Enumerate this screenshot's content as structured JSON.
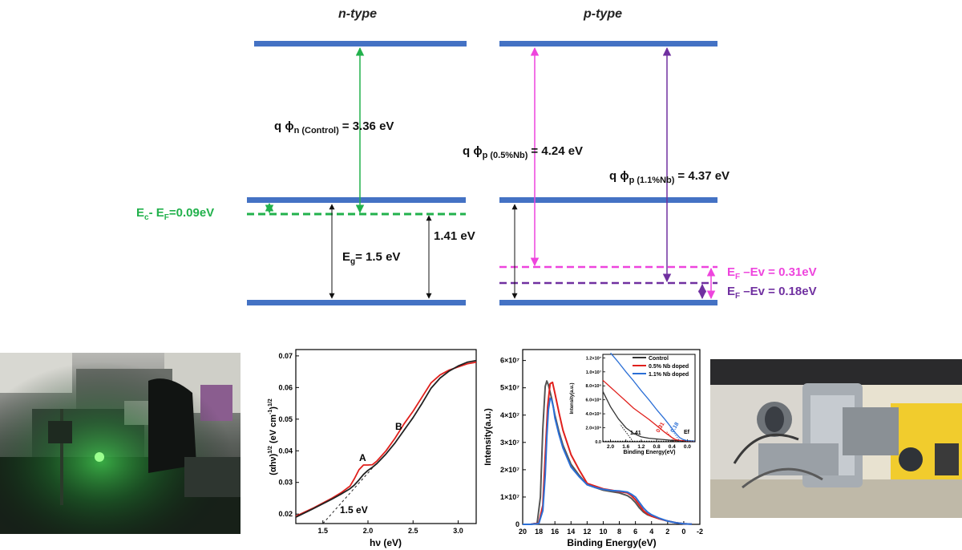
{
  "diagram": {
    "n_title": "n-type",
    "p_title": "p-type",
    "phi_n_sym": "q ϕ",
    "phi_n_sub": "n (Control)",
    "phi_n_val": "= 3.36 eV",
    "phi_p05_sym": "q ϕ",
    "phi_p05_sub": "p (0.5%Nb)",
    "phi_p05_val": "= 4.24 eV",
    "phi_p11_sym": "q ϕ",
    "phi_p11_sub": "p (1.1%Nb)",
    "phi_p11_val": "= 4.37 eV",
    "ec_ef_a": "E",
    "ec_ef_a_sub": "c",
    "ec_ef_b": "- E",
    "ec_ef_b_sub": "F",
    "ec_ef_c": "=0.09eV",
    "eg_a": "E",
    "eg_sub": "g",
    "eg_b": "= 1.5 eV",
    "gap141": "1.41 eV",
    "efev1_a": "E",
    "efev1_sub": "F",
    "efev1_b": " –Ev = 0.31eV",
    "efev2_a": "E",
    "efev2_sub": "F",
    "efev2_b": " –Ev = 0.18eV",
    "colors": {
      "band": "#4472c4",
      "green": "#22b14c",
      "magenta": "#ee44dd",
      "purple": "#7030a0"
    }
  },
  "chart_tauc": {
    "ylabel": "(αhν)",
    "ylabel_sup1": "1/2",
    "ylabel_unit": " (eV cm",
    "ylabel_sup2": "-1",
    "ylabel_close": ")",
    "ylabel_sup3": "1/2",
    "xlabel": "hν (eV)",
    "label_a": "A",
    "label_b": "B",
    "annotation": "1.5 eV",
    "chart_data": {
      "type": "line",
      "xlim": [
        1.2,
        3.2
      ],
      "ylim": [
        0.017,
        0.072
      ],
      "xticks": [
        "1.5",
        "2.0",
        "2.5",
        "3.0"
      ],
      "yticks": [
        "0.02",
        "0.03",
        "0.04",
        "0.05",
        "0.06",
        "0.07"
      ],
      "series": [
        {
          "color": "#e0201c",
          "x": [
            1.2,
            1.4,
            1.6,
            1.7,
            1.8,
            1.85,
            1.9,
            1.95,
            2.0,
            2.05,
            2.1,
            2.2,
            2.3,
            2.4,
            2.5,
            2.6,
            2.7,
            2.8,
            2.9,
            3.0,
            3.1,
            3.2
          ],
          "y": [
            0.0193,
            0.022,
            0.025,
            0.0267,
            0.0288,
            0.0312,
            0.034,
            0.0355,
            0.0355,
            0.0356,
            0.0368,
            0.04,
            0.044,
            0.0485,
            0.0525,
            0.057,
            0.0615,
            0.064,
            0.0655,
            0.0665,
            0.0675,
            0.068
          ]
        },
        {
          "color": "#222222",
          "x": [
            1.2,
            1.4,
            1.6,
            1.7,
            1.8,
            1.85,
            1.9,
            1.95,
            2.0,
            2.05,
            2.1,
            2.2,
            2.3,
            2.4,
            2.5,
            2.6,
            2.7,
            2.8,
            2.9,
            3.0,
            3.1,
            3.2
          ],
          "y": [
            0.019,
            0.0218,
            0.0247,
            0.0263,
            0.028,
            0.0292,
            0.0308,
            0.0325,
            0.0338,
            0.0348,
            0.036,
            0.039,
            0.0425,
            0.0465,
            0.0505,
            0.055,
            0.0598,
            0.063,
            0.0652,
            0.0668,
            0.068,
            0.0685
          ]
        },
        {
          "color": "#222222",
          "dashed": true,
          "x": [
            1.5,
            2.0,
            2.1
          ],
          "y": [
            0.017,
            0.033,
            0.0362
          ]
        }
      ]
    }
  },
  "chart_ups": {
    "ylabel": "Intensity(a.u.)",
    "xlabel": "Binding Energy(eV)",
    "chart_data": {
      "type": "line",
      "xlim": [
        20,
        -2
      ],
      "ylim": [
        0,
        6.4
      ],
      "xticks": [
        "20",
        "18",
        "16",
        "14",
        "12",
        "10",
        "8",
        "6",
        "4",
        "2",
        "0",
        "-2"
      ],
      "yticks": [
        "0",
        "1×10⁷",
        "2×10⁷",
        "3×10⁷",
        "4×10⁷",
        "5×10⁷",
        "6×10⁷"
      ],
      "series": [
        {
          "color": "#555555",
          "x": [
            20,
            19,
            18.2,
            17.8,
            17.5,
            17.2,
            17,
            16.8,
            16.4,
            16,
            15.5,
            15,
            14,
            13,
            12,
            11,
            10,
            9,
            8,
            7,
            6.5,
            6,
            5.5,
            5,
            4.5,
            4,
            3,
            2,
            1,
            0,
            -1
          ],
          "y": [
            0,
            0,
            0.05,
            1.0,
            3.5,
            5.05,
            5.25,
            5.1,
            4.6,
            4.0,
            3.4,
            2.9,
            2.2,
            1.8,
            1.45,
            1.35,
            1.25,
            1.2,
            1.15,
            1.05,
            0.95,
            0.8,
            0.6,
            0.45,
            0.35,
            0.3,
            0.2,
            0.12,
            0.06,
            0.02,
            0.01
          ]
        },
        {
          "color": "#e0201c",
          "x": [
            20,
            19,
            18,
            17.5,
            17.2,
            16.9,
            16.6,
            16.3,
            16,
            15.5,
            15,
            14,
            13,
            12,
            11,
            10,
            9,
            8,
            7,
            6.5,
            6,
            5.5,
            5,
            4.5,
            4,
            3,
            2,
            1,
            0,
            -1
          ],
          "y": [
            0,
            0,
            0.05,
            0.7,
            2.5,
            4.3,
            5.15,
            5.2,
            4.8,
            4.1,
            3.45,
            2.55,
            2.0,
            1.5,
            1.4,
            1.3,
            1.25,
            1.2,
            1.15,
            1.05,
            0.9,
            0.7,
            0.5,
            0.38,
            0.3,
            0.2,
            0.12,
            0.06,
            0.02,
            0.01
          ]
        },
        {
          "color": "#2b6fd6",
          "x": [
            20,
            19,
            18,
            17.5,
            17.2,
            17,
            16.8,
            16.6,
            16.4,
            16.2,
            16,
            15.5,
            15,
            14,
            13,
            12,
            11,
            10,
            9,
            8,
            7,
            6.5,
            6,
            5.5,
            5,
            4.5,
            4,
            3,
            2,
            1,
            0,
            -1
          ],
          "y": [
            0,
            0,
            0.03,
            0.5,
            1.8,
            3.2,
            4.2,
            4.62,
            4.55,
            4.3,
            3.9,
            3.3,
            2.8,
            2.1,
            1.75,
            1.45,
            1.35,
            1.28,
            1.24,
            1.22,
            1.18,
            1.1,
            1.0,
            0.8,
            0.6,
            0.45,
            0.35,
            0.22,
            0.12,
            0.06,
            0.02,
            0.01
          ]
        }
      ]
    },
    "inset": {
      "ylabel": "Intensity(a.u.)",
      "xlabel": "Binding Energy(eV)",
      "legend": [
        "Control",
        "0.5% Nb doped",
        "1.1% Nb doped"
      ],
      "label_141": "1.41",
      "label_031": "0.31",
      "label_018": "0.18",
      "label_ef": "Ef",
      "chart_data": {
        "type": "line",
        "xlim": [
          2.2,
          -0.2
        ],
        "ylim": [
          0,
          1.25
        ],
        "xticks": [
          "2.0",
          "1.6",
          "1.2",
          "0.8",
          "0.4",
          "0.0"
        ],
        "yticks": [
          "0.0",
          "2.0×10⁶",
          "4.0×10⁶",
          "6.0×10⁶",
          "8.0×10⁶",
          "1.0×10⁷",
          "1.2×10⁷"
        ],
        "series": [
          {
            "name": "Control",
            "color": "#333333",
            "x": [
              2.2,
              2.0,
              1.8,
              1.6,
              1.4,
              1.2,
              1.0,
              0.8,
              0.6,
              0.4,
              0.2,
              0.0,
              -0.2
            ],
            "y": [
              0.72,
              0.5,
              0.33,
              0.2,
              0.12,
              0.07,
              0.05,
              0.04,
              0.03,
              0.02,
              0.015,
              0.01,
              0.01
            ]
          },
          {
            "name": "0.5% Nb doped",
            "color": "#e0201c",
            "x": [
              2.2,
              2.0,
              1.8,
              1.6,
              1.4,
              1.2,
              1.0,
              0.8,
              0.6,
              0.4,
              0.3,
              0.2,
              0.0,
              -0.2
            ],
            "y": [
              0.88,
              0.78,
              0.68,
              0.58,
              0.48,
              0.4,
              0.32,
              0.23,
              0.14,
              0.06,
              0.03,
              0.02,
              0.01,
              0.01
            ]
          },
          {
            "name": "1.1% Nb doped",
            "color": "#2b6fd6",
            "x": [
              2.0,
              1.8,
              1.6,
              1.4,
              1.2,
              1.0,
              0.8,
              0.6,
              0.4,
              0.3,
              0.2,
              0.1,
              0.0,
              -0.2
            ],
            "y": [
              1.27,
              1.14,
              1.0,
              0.87,
              0.73,
              0.6,
              0.46,
              0.33,
              0.19,
              0.12,
              0.06,
              0.03,
              0.015,
              0.01
            ]
          }
        ]
      }
    }
  }
}
